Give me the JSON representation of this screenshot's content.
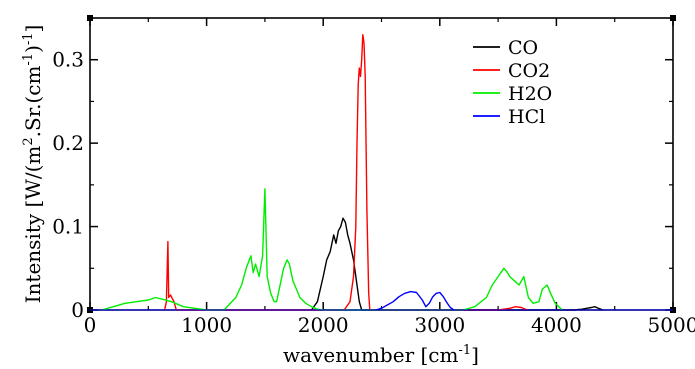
{
  "chart_data": {
    "type": "line",
    "title": "",
    "xlabel": "wavenumber [cm",
    "xlabel_sup": "-1",
    "xlabel_tail": "]",
    "ylabel_parts": [
      "Intensity [W/(m",
      "2",
      ".Sr.(cm",
      "-1",
      ")",
      "-1",
      "]"
    ],
    "xlim": [
      0,
      5000
    ],
    "ylim": [
      0,
      0.35
    ],
    "x_ticks": [
      0,
      1000,
      2000,
      3000,
      4000,
      5000
    ],
    "x_tick_labels": [
      "0",
      "1000",
      "2000",
      "3000",
      "4000",
      "5000"
    ],
    "y_ticks": [
      0,
      0.1,
      0.2,
      0.3
    ],
    "y_tick_labels": [
      "0",
      "0.1",
      "0.2",
      "0.3"
    ],
    "grid": false,
    "legend_position": "top-right",
    "series": [
      {
        "name": "CO",
        "color": "#000000",
        "x": [
          1900,
          1950,
          2000,
          2030,
          2060,
          2090,
          2110,
          2130,
          2150,
          2170,
          2190,
          2210,
          2230,
          2260,
          2290,
          2310,
          2330,
          4150,
          4220,
          4260,
          4300,
          4330,
          4360,
          4400
        ],
        "y": [
          0,
          0.01,
          0.04,
          0.06,
          0.07,
          0.09,
          0.08,
          0.095,
          0.1,
          0.11,
          0.105,
          0.09,
          0.08,
          0.06,
          0.03,
          0.01,
          0,
          0,
          0.001,
          0.002,
          0.003,
          0.004,
          0.002,
          0
        ]
      },
      {
        "name": "CO2",
        "color": "#ff0000",
        "x": [
          640,
          655,
          668,
          675,
          690,
          720,
          740,
          2180,
          2230,
          2260,
          2280,
          2290,
          2300,
          2310,
          2320,
          2330,
          2340,
          2350,
          2360,
          2375,
          2390,
          2400,
          3500,
          3600,
          3650,
          3700,
          3750
        ],
        "y": [
          0,
          0.01,
          0.082,
          0.015,
          0.018,
          0.01,
          0,
          0,
          0.01,
          0.04,
          0.1,
          0.2,
          0.27,
          0.29,
          0.28,
          0.3,
          0.33,
          0.32,
          0.28,
          0.12,
          0.02,
          0,
          0,
          0.002,
          0.004,
          0.003,
          0
        ]
      },
      {
        "name": "H2O",
        "color": "#00ee00",
        "x": [
          100,
          200,
          300,
          400,
          500,
          560,
          620,
          700,
          800,
          1000,
          1150,
          1250,
          1300,
          1340,
          1380,
          1400,
          1420,
          1450,
          1480,
          1500,
          1510,
          1520,
          1550,
          1580,
          1600,
          1630,
          1660,
          1690,
          1710,
          1740,
          1770,
          1800,
          1850,
          1900,
          1950,
          2000,
          3200,
          3300,
          3400,
          3450,
          3500,
          3550,
          3580,
          3600,
          3640,
          3680,
          3720,
          3760,
          3800,
          3850,
          3880,
          3920,
          3950,
          3990,
          4050
        ],
        "y": [
          0,
          0.004,
          0.008,
          0.01,
          0.012,
          0.015,
          0.013,
          0.01,
          0.004,
          0,
          0,
          0.015,
          0.03,
          0.05,
          0.065,
          0.045,
          0.055,
          0.04,
          0.065,
          0.145,
          0.09,
          0.04,
          0.02,
          0.01,
          0.01,
          0.03,
          0.05,
          0.06,
          0.055,
          0.035,
          0.025,
          0.015,
          0.008,
          0.004,
          0.001,
          0,
          0,
          0.004,
          0.015,
          0.03,
          0.04,
          0.05,
          0.045,
          0.04,
          0.035,
          0.03,
          0.04,
          0.015,
          0.008,
          0.01,
          0.025,
          0.03,
          0.02,
          0.008,
          0
        ]
      },
      {
        "name": "HCl",
        "color": "#0000ff",
        "x": [
          2450,
          2500,
          2550,
          2600,
          2650,
          2700,
          2750,
          2800,
          2850,
          2880,
          2910,
          2940,
          2970,
          3000,
          3030,
          3060,
          3090,
          3120
        ],
        "y": [
          0,
          0.002,
          0.006,
          0.01,
          0.016,
          0.02,
          0.022,
          0.021,
          0.012,
          0.004,
          0.008,
          0.016,
          0.02,
          0.021,
          0.016,
          0.009,
          0.003,
          0
        ]
      }
    ]
  }
}
